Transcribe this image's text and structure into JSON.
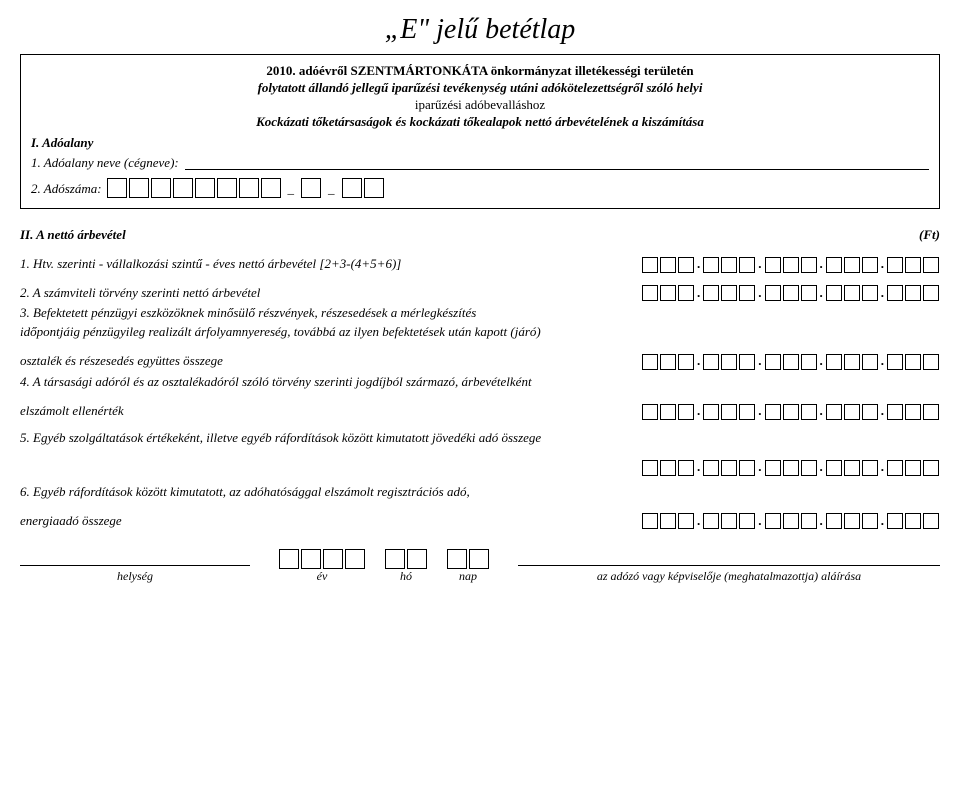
{
  "title": "„E\" jelű betétlap",
  "header": {
    "line1": "2010. adóévről SZENTMÁRTONKÁTA önkormányzat illetékességi területén",
    "line2": "folytatott állandó jellegű iparűzési tevékenység utáni adókötelezettségről szóló helyi",
    "line3": "iparűzési adóbevalláshoz",
    "line4": "Kockázati tőketársaságok és kockázati tőkealapok nettó árbevételének a kiszámítása"
  },
  "section1": {
    "title": "I. Adóalany",
    "name_label": "1. Adóalany neve (cégneve):",
    "tax_label": "2. Adószáma:"
  },
  "section2": {
    "title": "II. A nettó árbevétel",
    "ft": "(Ft)",
    "item1": "1. Htv. szerinti - vállalkozási szintű - éves nettó árbevétel [2+3-(4+5+6)]",
    "item2": "2. A számviteli törvény szerinti nettó árbevétel",
    "item3a": "3. Befektetett pénzügyi eszközöknek minősülő részvények, részesedések a mérlegkészítés",
    "item3b": "időpontjáig pénzügyileg realizált árfolyamnyereség, továbbá az ilyen befektetések után kapott (járó)",
    "item3c": "osztalék és részesedés együttes összege",
    "item4a": "4. A társasági adóról és az osztalékadóról szóló törvény szerinti jogdíjból származó, árbevételként",
    "item4b": "elszámolt ellenérték",
    "item5": "5. Egyéb szolgáltatások értékeként, illetve egyéb ráfordítások között kimutatott jövedéki adó összege",
    "item6a": "6. Egyéb ráfordítások között kimutatott, az adóhatósággal elszámolt regisztrációs adó,",
    "item6b": "energiaadó összege"
  },
  "footer": {
    "place": "helység",
    "year": "év",
    "month": "hó",
    "day": "nap",
    "signer": "az adózó vagy képviselője (meghatalmazottja) aláírása"
  },
  "boxes": {
    "tax_block1": 8,
    "tax_block2": 1,
    "tax_block3": 2,
    "amount_groups": [
      3,
      3,
      3,
      3,
      3
    ],
    "year_boxes": 4,
    "month_boxes": 2,
    "day_boxes": 2
  }
}
